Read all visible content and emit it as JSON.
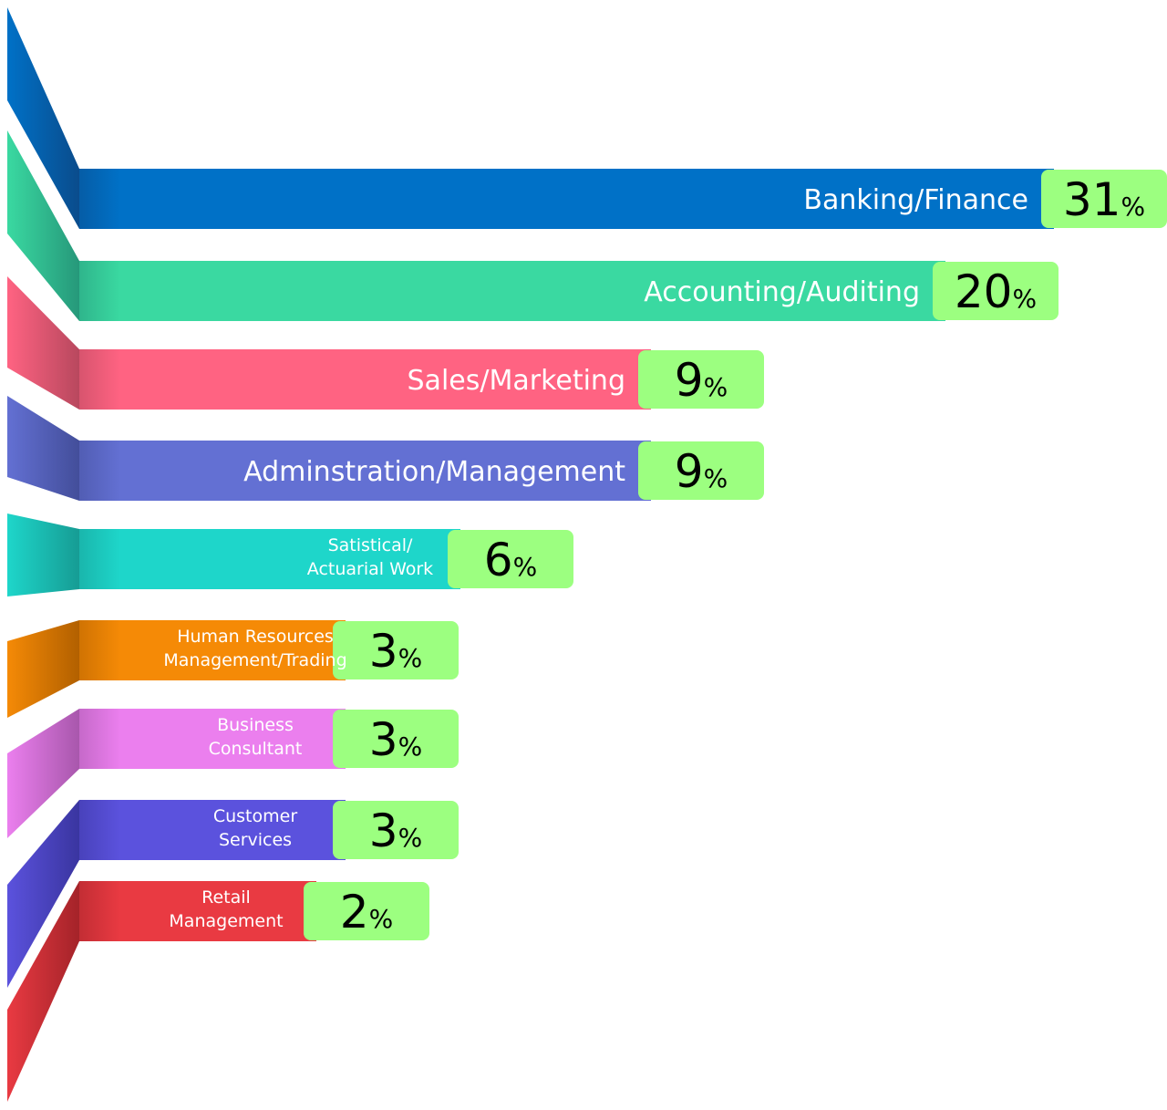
{
  "chart_data": {
    "type": "bar",
    "orientation": "horizontal",
    "categories": [
      "Banking/Finance",
      "Accounting/Auditing",
      "Sales/Marketing",
      "Adminstration/Management",
      "Satistical/ Actuarial Work",
      "Human Resources Management/Trading",
      "Business Consultant",
      "Customer Services",
      "Retail Management"
    ],
    "values": [
      31,
      20,
      9,
      9,
      6,
      3,
      3,
      3,
      2
    ],
    "value_suffix": "%",
    "bars": [
      {
        "label_lines": [
          "Banking/Finance"
        ],
        "value": 31,
        "color": "#0071C7",
        "ribbon": "#0A4C8C"
      },
      {
        "label_lines": [
          "Accounting/Auditing"
        ],
        "value": 20,
        "color": "#3AD9A1",
        "ribbon": "#26987A"
      },
      {
        "label_lines": [
          "Sales/Marketing"
        ],
        "value": 9,
        "color": "#FF6382",
        "ribbon": "#B8485E"
      },
      {
        "label_lines": [
          "Adminstration/Management"
        ],
        "value": 9,
        "color": "#6370D3",
        "ribbon": "#434E9A"
      },
      {
        "label_lines": [
          "Satistical/",
          "Actuarial Work"
        ],
        "value": 6,
        "color": "#1ED6CA",
        "ribbon": "#169C94"
      },
      {
        "label_lines": [
          "Human Resources",
          "Management/Trading"
        ],
        "value": 3,
        "color": "#F58A06",
        "ribbon": "#B26000"
      },
      {
        "label_lines": [
          "Business",
          "Consultant"
        ],
        "value": 3,
        "color": "#EB7FEE",
        "ribbon": "#A857AC"
      },
      {
        "label_lines": [
          "Customer",
          "Services"
        ],
        "value": 3,
        "color": "#5B52DD",
        "ribbon": "#3A35A0"
      },
      {
        "label_lines": [
          "Retail",
          "Management"
        ],
        "value": 2,
        "color": "#E93A42",
        "ribbon": "#A42329"
      }
    ],
    "badge_color": "#9CFF80",
    "title": "",
    "xlabel": "",
    "ylabel": ""
  }
}
